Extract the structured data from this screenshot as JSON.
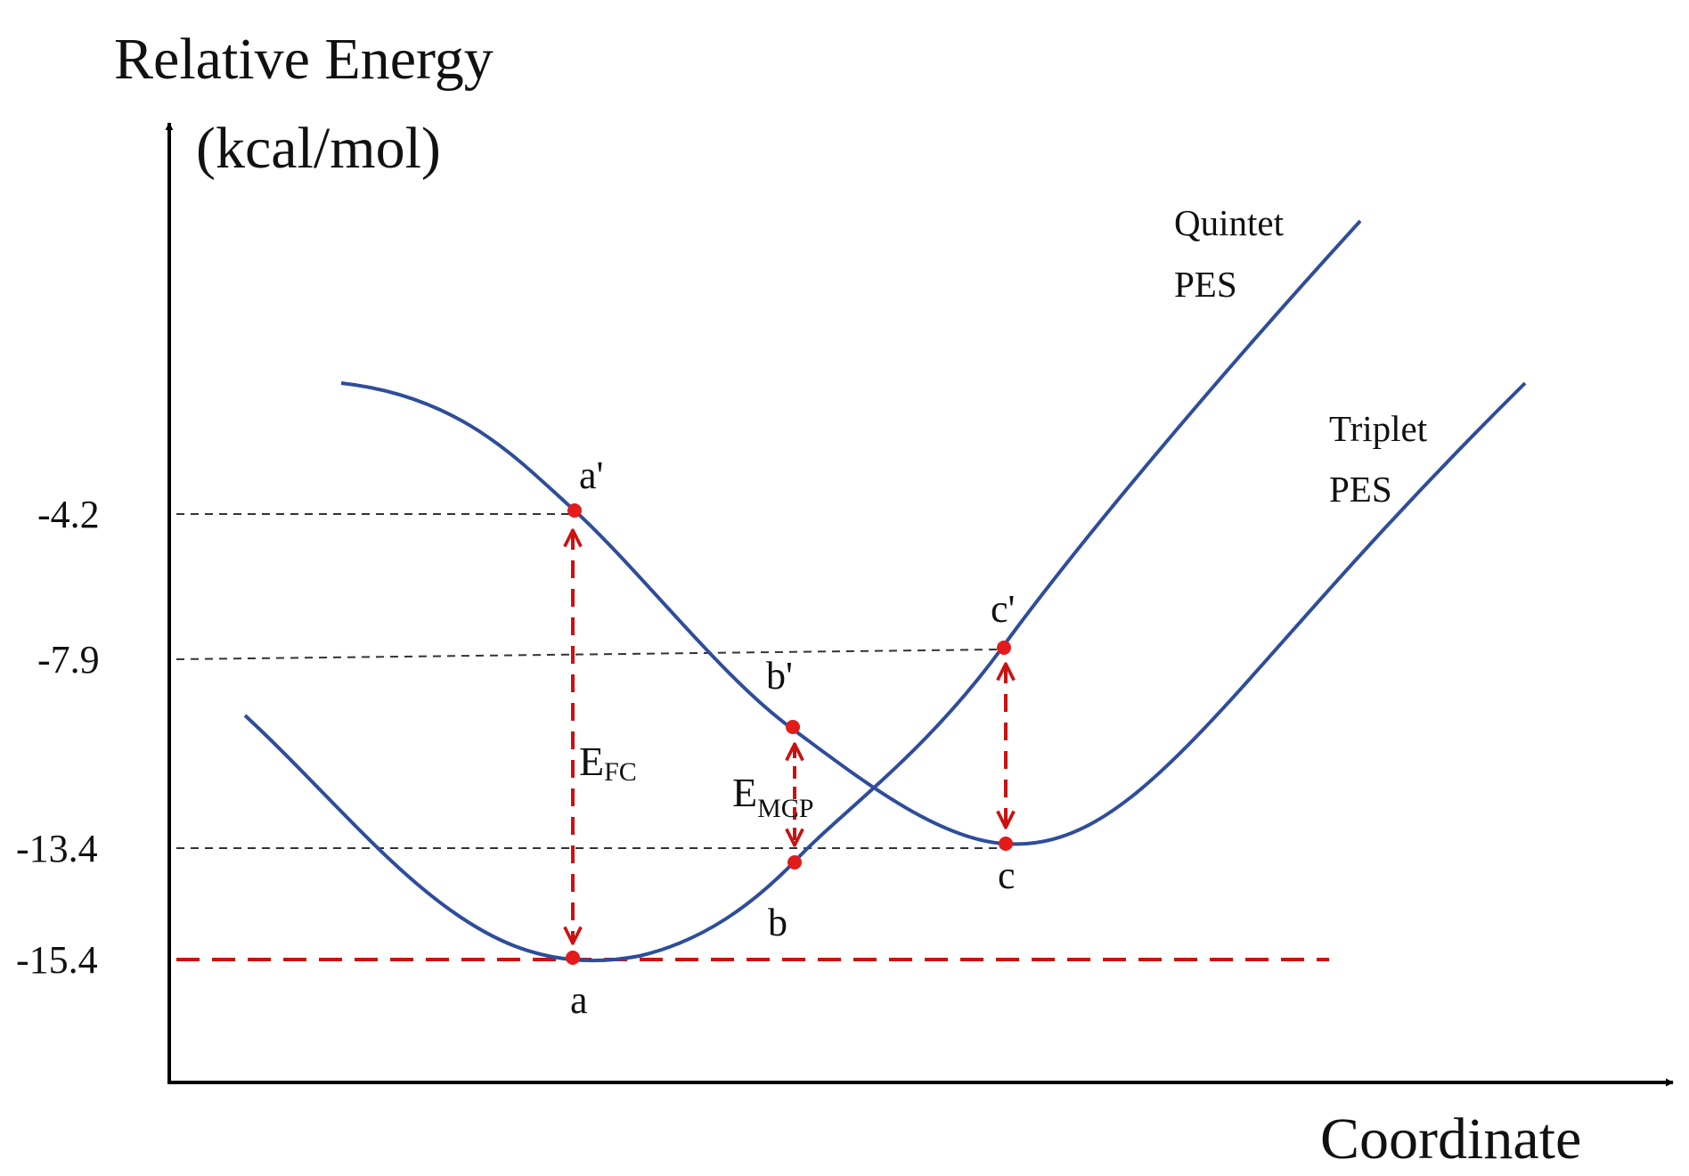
{
  "axes": {
    "y_title_line1": "Relative Energy",
    "y_title_line2": "(kcal/mol)",
    "x_title": "Coordinate"
  },
  "levels": [
    {
      "label": "-4.2",
      "value": -4.2
    },
    {
      "label": "-7.9",
      "value": -7.9
    },
    {
      "label": "-13.4",
      "value": -13.4
    },
    {
      "label": "-15.4",
      "value": -15.4
    }
  ],
  "curves": {
    "quintet": {
      "line1": "Quintet",
      "line2": "PES"
    },
    "triplet": {
      "line1": "Triplet",
      "line2": "PES"
    }
  },
  "points": {
    "a": "a",
    "a_prime": "a'",
    "b": "b",
    "b_prime": "b'",
    "c": "c",
    "c_prime": "c'"
  },
  "energies": {
    "fc": {
      "main": "E",
      "sub": "FC"
    },
    "mcp": {
      "main": "E",
      "sub": "MCP"
    }
  },
  "colors": {
    "curve": "#2e4d9b",
    "marker": "#e31b1b",
    "arrow": "#cc1111",
    "guide": "#333333",
    "axis": "#000000"
  }
}
